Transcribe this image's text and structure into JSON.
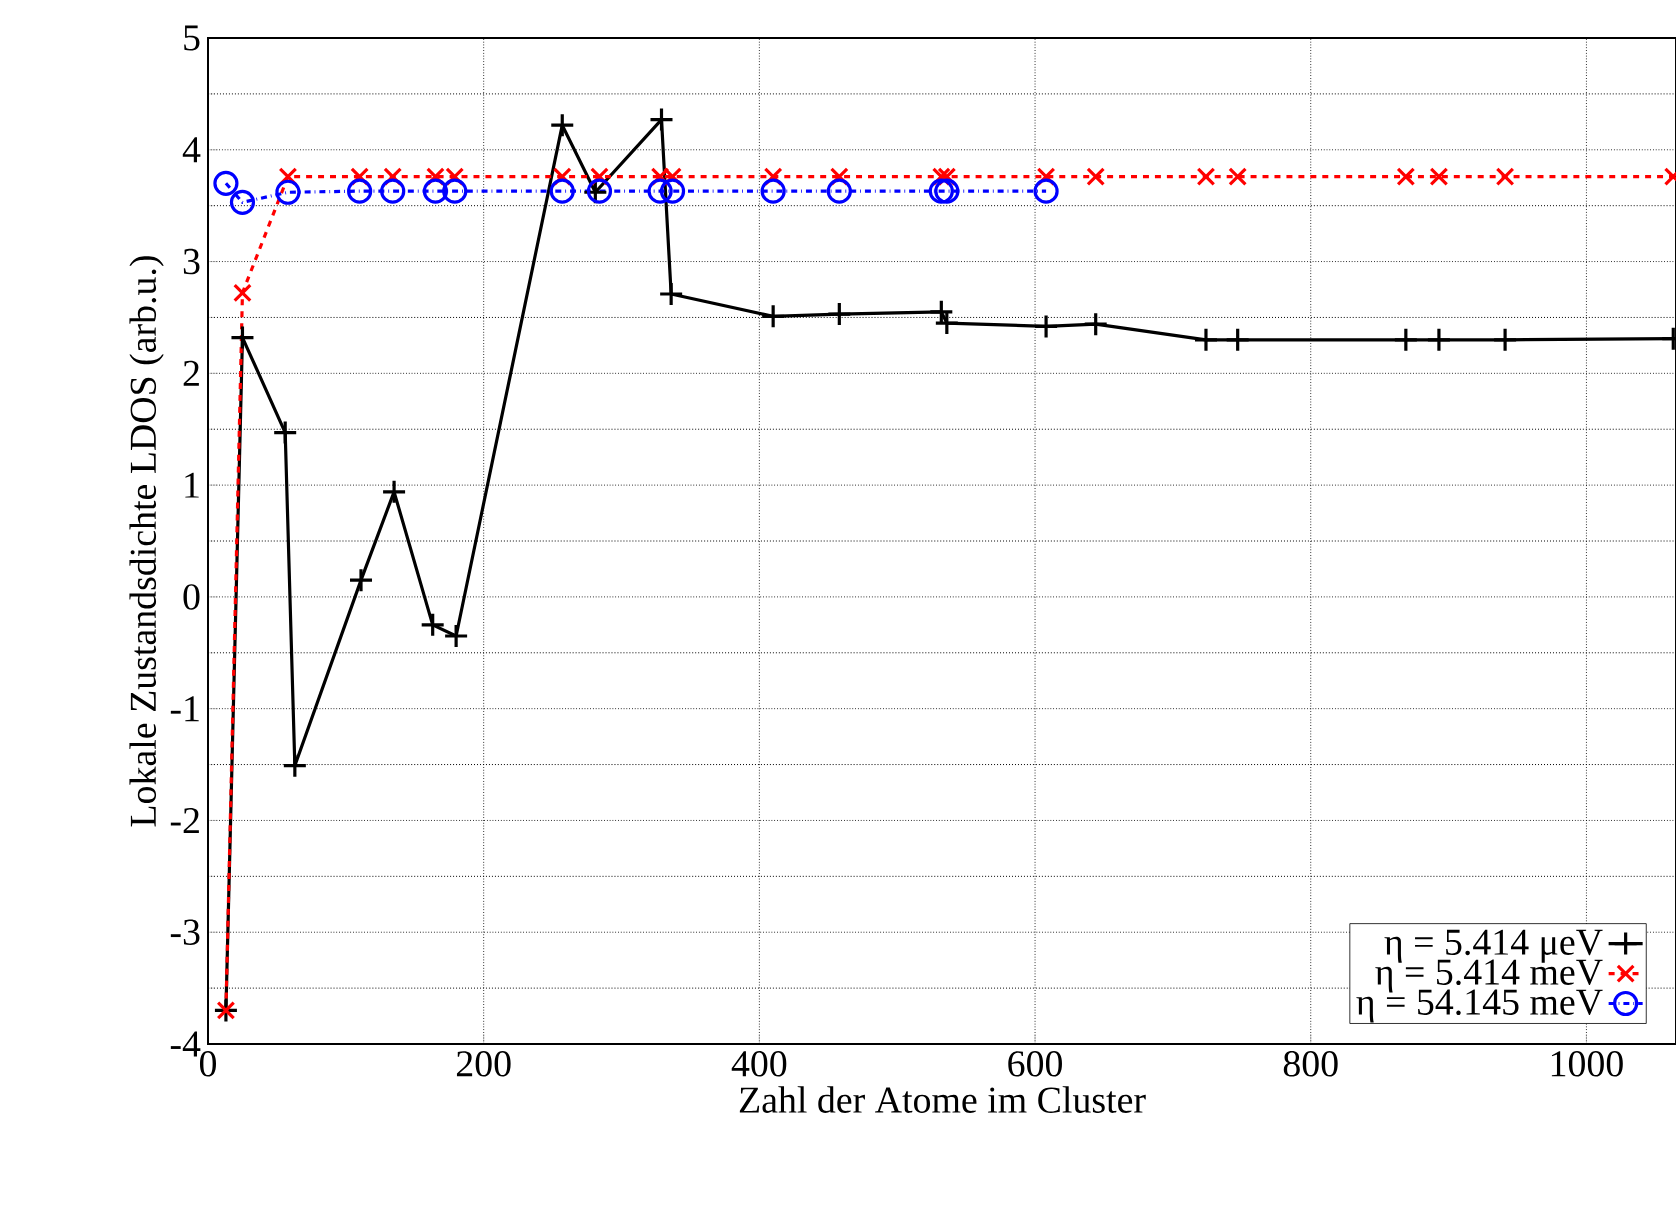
{
  "chart_data": {
    "type": "line",
    "xlabel": "Zahl der Atome im Cluster",
    "ylabel": "Lokale Zustandsdichte LDOS (arb.u.)",
    "xlim": [
      0,
      1065
    ],
    "xticks": [
      0,
      200,
      400,
      600,
      800,
      1000
    ],
    "ylim": [
      -4,
      5
    ],
    "yticks": [
      -4,
      -3,
      -2,
      -1,
      0,
      1,
      2,
      3,
      4,
      5
    ],
    "grid": true,
    "legend": "bottom right",
    "series": [
      {
        "name": "η = 5.414 μeV",
        "color": "#000000",
        "marker": "cross",
        "line_style": "solid",
        "x": [
          13,
          25,
          56,
          63,
          111,
          135,
          163,
          180,
          257,
          281,
          329,
          336,
          410,
          458,
          532,
          536,
          608,
          644,
          724,
          747,
          869,
          893,
          941,
          1063
        ],
        "values": [
          -3.7,
          2.32,
          1.47,
          -1.51,
          0.15,
          0.94,
          -0.25,
          -0.35,
          4.22,
          3.62,
          4.27,
          2.71,
          2.51,
          2.53,
          2.55,
          2.45,
          2.42,
          2.44,
          2.3,
          2.3,
          2.3,
          2.3,
          2.3,
          2.31
        ]
      },
      {
        "name": "η = 5.414 meV",
        "color": "#ff0000",
        "marker": "x",
        "line_style": "dashed",
        "x": [
          13,
          25,
          58,
          110,
          134,
          165,
          179,
          257,
          284,
          328,
          337,
          410,
          458,
          532,
          536,
          608,
          644,
          724,
          747,
          869,
          893,
          941,
          1063
        ],
        "values": [
          -3.7,
          2.72,
          3.76,
          3.76,
          3.76,
          3.76,
          3.76,
          3.76,
          3.76,
          3.76,
          3.76,
          3.76,
          3.76,
          3.76,
          3.76,
          3.76,
          3.76,
          3.76,
          3.76,
          3.76,
          3.76,
          3.76,
          3.76
        ]
      },
      {
        "name": "η = 54.145 meV",
        "color": "#0000ff",
        "marker": "circle",
        "line_style": "dashdot",
        "x": [
          13,
          25,
          58,
          110,
          134,
          165,
          179,
          257,
          284,
          328,
          337,
          410,
          458,
          532,
          536,
          608
        ],
        "values": [
          3.7,
          3.53,
          3.62,
          3.63,
          3.63,
          3.63,
          3.63,
          3.63,
          3.63,
          3.63,
          3.63,
          3.63,
          3.63,
          3.63,
          3.63,
          3.63
        ]
      }
    ]
  }
}
